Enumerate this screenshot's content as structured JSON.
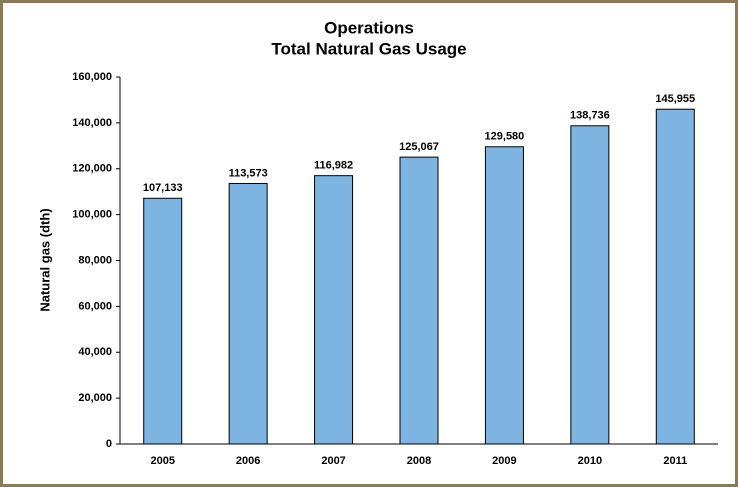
{
  "chart_data": {
    "type": "bar",
    "title": "Operations",
    "subtitle": "Total Natural Gas Usage",
    "y_label": "Natural gas (dth)",
    "categories": [
      "2005",
      "2006",
      "2007",
      "2008",
      "2009",
      "2010",
      "2011"
    ],
    "values": [
      107133,
      113573,
      116982,
      125067,
      129580,
      138736,
      145955
    ],
    "value_labels": [
      "107,133",
      "113,573",
      "116,982",
      "125,067",
      "129,580",
      "138,736",
      "145,955"
    ],
    "color": "#7eb4e2",
    "ylim": [
      0,
      160000
    ],
    "yticks": [
      0,
      {
        "value": 20000,
        "label": "20,000"
      },
      {
        "value": 40000,
        "label": "40,000"
      },
      {
        "value": 60000,
        "label": "60,000"
      },
      {
        "value": 80000,
        "label": "80,000"
      },
      {
        "value": 100000,
        "label": "100,000"
      },
      {
        "value": 120000,
        "label": "120,000"
      },
      {
        "value": 140000,
        "label": "140,000"
      },
      {
        "value": 160000,
        "label": "160,000"
      }
    ],
    "grid": false
  }
}
